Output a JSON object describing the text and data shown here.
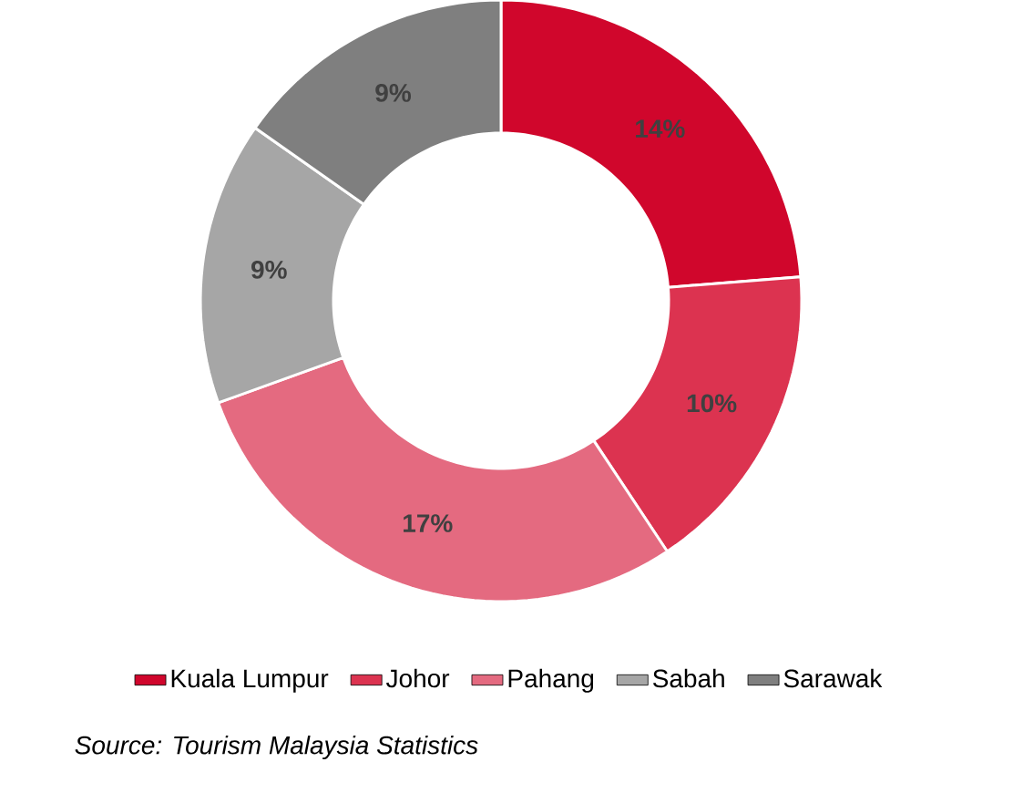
{
  "chart_data": {
    "type": "donut",
    "categories": [
      "Kuala Lumpur",
      "Johor",
      "Pahang",
      "Sabah",
      "Sarawak"
    ],
    "values": [
      14,
      10,
      17,
      9,
      9
    ],
    "colors": [
      "#d0062c",
      "#dc3350",
      "#e46a80",
      "#a6a6a6",
      "#7f7f7f"
    ],
    "value_labels": [
      "14%",
      "10%",
      "17%",
      "9%",
      "9%"
    ],
    "legend": "bottom",
    "annotations": [
      "Source: Tourism Malaysia Statistics"
    ]
  }
}
